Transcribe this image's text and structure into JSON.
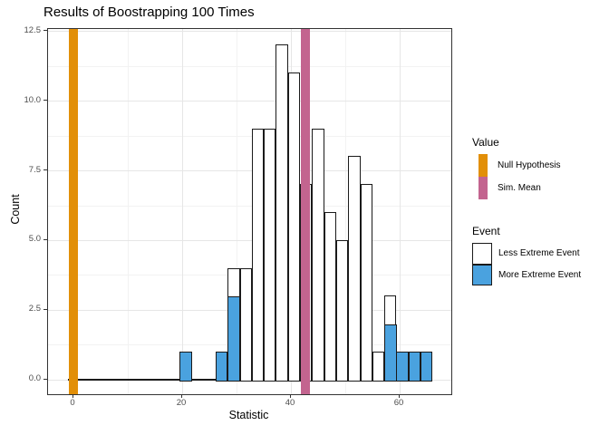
{
  "title": "Results of Boostrapping 100 Times",
  "colors": {
    "orange": "#E28F08",
    "pink": "#C3648F",
    "blue": "#4AA2DF",
    "bar_fill": "#FFFFFF",
    "bar_stroke": "#1A1A1A",
    "grid_major": "#E6E6E6",
    "grid_minor": "#F2F2F2",
    "tick_mark": "#333333",
    "baseline": "#1A1A1A"
  },
  "chart_data": {
    "type": "bar",
    "subtype": "histogram",
    "title": "Results of Boostrapping 100 Times",
    "xlabel": "Statistic",
    "ylabel": "Count",
    "xlim": [
      -4.7,
      69.5
    ],
    "ylim": [
      -0.5,
      12.6
    ],
    "grid": "on",
    "bin_width": 2.22,
    "x_axis": {
      "label": "Statistic",
      "ticks": [
        {
          "v": 0,
          "label": "0"
        },
        {
          "v": 20,
          "label": "20"
        },
        {
          "v": 40,
          "label": "40"
        },
        {
          "v": 60,
          "label": "60"
        }
      ],
      "minor": [
        10,
        30,
        50
      ]
    },
    "y_axis": {
      "label": "Count",
      "ticks": [
        {
          "v": 0,
          "label": "0.0"
        },
        {
          "v": 2.5,
          "label": "2.5"
        },
        {
          "v": 5,
          "label": "5.0"
        },
        {
          "v": 7.5,
          "label": "7.5"
        },
        {
          "v": 10,
          "label": "10.0"
        },
        {
          "v": 12.5,
          "label": "12.5"
        }
      ],
      "minor": [
        1.25,
        3.75,
        6.25,
        8.75,
        11.25
      ]
    },
    "baseline_range": [
      -1,
      66.06
    ],
    "bins": [
      {
        "center": 20.67,
        "count": 1,
        "more_extreme": 1
      },
      {
        "center": 27.27,
        "count": 1,
        "more_extreme": 1
      },
      {
        "center": 29.48,
        "count": 4,
        "more_extreme": 3
      },
      {
        "center": 31.7,
        "count": 4,
        "more_extreme": 0
      },
      {
        "center": 33.92,
        "count": 9,
        "more_extreme": 0
      },
      {
        "center": 36.13,
        "count": 9,
        "more_extreme": 0
      },
      {
        "center": 38.35,
        "count": 12,
        "more_extreme": 0
      },
      {
        "center": 40.57,
        "count": 11,
        "more_extreme": 0
      },
      {
        "center": 42.78,
        "count": 7,
        "more_extreme": 0
      },
      {
        "center": 45.0,
        "count": 9,
        "more_extreme": 0
      },
      {
        "center": 47.22,
        "count": 6,
        "more_extreme": 0
      },
      {
        "center": 49.43,
        "count": 5,
        "more_extreme": 0
      },
      {
        "center": 51.65,
        "count": 8,
        "more_extreme": 0
      },
      {
        "center": 53.87,
        "count": 7,
        "more_extreme": 0
      },
      {
        "center": 56.08,
        "count": 1,
        "more_extreme": 0
      },
      {
        "center": 58.3,
        "count": 3,
        "more_extreme": 2
      },
      {
        "center": 60.52,
        "count": 1,
        "more_extreme": 1
      },
      {
        "center": 62.73,
        "count": 1,
        "more_extreme": 1
      },
      {
        "center": 64.95,
        "count": 1,
        "more_extreme": 1
      }
    ],
    "vlines": [
      {
        "id": "null-hypothesis",
        "label": "Null Hypothesis",
        "x": 0,
        "color_key": "orange"
      },
      {
        "id": "sim-mean",
        "label": "Sim. Mean",
        "x": 42.6,
        "color_key": "pink"
      }
    ]
  },
  "legend": {
    "value": {
      "title": "Value",
      "items": [
        {
          "label": "Null Hypothesis",
          "color_key": "orange"
        },
        {
          "label": "Sim. Mean",
          "color_key": "pink"
        }
      ]
    },
    "event": {
      "title": "Event",
      "items": [
        {
          "label": "Less Extreme Event",
          "fill_key": "bar_fill"
        },
        {
          "label": "More Extreme Event",
          "fill_key": "blue"
        }
      ]
    }
  }
}
